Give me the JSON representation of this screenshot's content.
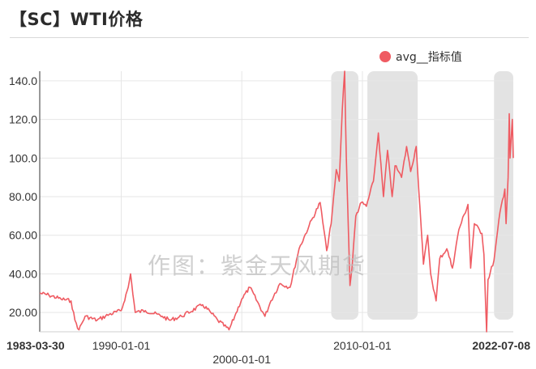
{
  "title": "【SC】WTI价格",
  "watermark": "作图：紫金天风期货",
  "colors": {
    "series": "#ef5b62",
    "shade": "#e3e3e3",
    "grid": "#e6e6e6",
    "axis": "#333333"
  },
  "chart_data": {
    "type": "line",
    "title": "【SC】WTI价格",
    "xlabel": "",
    "ylabel": "",
    "ylim": [
      10,
      145
    ],
    "xlim": [
      "1983-03-30",
      "2022-07-08"
    ],
    "yticks": [
      "140.0",
      "120.0",
      "100.0",
      "80.00",
      "60.00",
      "40.00",
      "20.00"
    ],
    "xticks": [
      {
        "label": "1983-03-30",
        "bold": true,
        "row": 1
      },
      {
        "label": "1990-01-01",
        "bold": false,
        "row": 1
      },
      {
        "label": "2000-01-01",
        "bold": false,
        "row": 2
      },
      {
        "label": "2010-01-01",
        "bold": false,
        "row": 1
      },
      {
        "label": "2022-07-08",
        "bold": true,
        "row": 1
      }
    ],
    "grid": true,
    "legend_position": "top-right",
    "shaded_periods": [
      [
        "2007-06-01",
        "2009-09-01"
      ],
      [
        "2010-06-01",
        "2014-08-01"
      ],
      [
        "2020-12-01",
        "2022-07-08"
      ]
    ],
    "series": [
      {
        "name": "avg__指标值",
        "x": [
          "1983-03-30",
          "1984-01-01",
          "1985-01-01",
          "1985-11-01",
          "1986-03-01",
          "1986-07-01",
          "1987-01-01",
          "1988-01-01",
          "1989-01-01",
          "1990-01-01",
          "1990-08-01",
          "1990-10-10",
          "1991-03-01",
          "1992-01-01",
          "1993-06-01",
          "1994-01-01",
          "1995-01-01",
          "1996-10-01",
          "1997-06-01",
          "1998-01-01",
          "1998-12-10",
          "1999-06-01",
          "2000-01-01",
          "2000-09-01",
          "2001-12-01",
          "2002-06-01",
          "2003-03-01",
          "2004-01-01",
          "2004-10-01",
          "2005-08-01",
          "2006-07-01",
          "2007-01-15",
          "2007-06-01",
          "2007-11-01",
          "2008-02-01",
          "2008-05-01",
          "2008-07-11",
          "2008-09-01",
          "2008-12-20",
          "2009-03-01",
          "2009-06-15",
          "2009-12-01",
          "2010-05-01",
          "2010-12-01",
          "2011-04-30",
          "2011-10-01",
          "2012-02-01",
          "2012-06-20",
          "2012-09-15",
          "2013-01-01",
          "2013-04-01",
          "2013-09-01",
          "2014-01-01",
          "2014-06-20",
          "2014-12-01",
          "2015-01-25",
          "2015-06-01",
          "2015-09-01",
          "2016-02-11",
          "2016-06-01",
          "2017-01-01",
          "2017-06-20",
          "2018-01-01",
          "2018-10-03",
          "2018-12-24",
          "2019-04-15",
          "2019-12-01",
          "2020-02-01",
          "2020-04-20",
          "2020-06-01",
          "2020-12-01",
          "2021-06-01",
          "2021-10-25",
          "2021-12-01",
          "2022-02-01",
          "2022-03-08",
          "2022-04-01",
          "2022-06-08",
          "2022-07-08"
        ],
        "values": [
          30,
          29,
          27,
          26,
          16,
          11,
          18,
          16,
          19,
          21,
          33,
          40,
          20,
          21,
          18,
          16,
          18,
          24,
          20,
          16,
          11,
          18,
          27,
          33,
          18,
          26,
          35,
          33,
          53,
          65,
          77,
          52,
          66,
          94,
          88,
          125,
          145,
          100,
          34,
          45,
          70,
          77,
          75,
          88,
          113,
          80,
          104,
          80,
          96,
          93,
          90,
          106,
          93,
          106,
          60,
          45,
          60,
          40,
          26,
          48,
          53,
          43,
          63,
          76,
          43,
          66,
          61,
          50,
          9,
          37,
          47,
          72,
          84,
          66,
          90,
          123,
          100,
          120,
          100
        ]
      }
    ]
  }
}
